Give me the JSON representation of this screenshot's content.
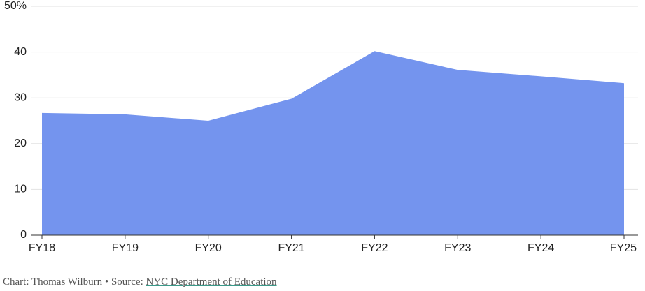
{
  "chart_data": {
    "type": "area",
    "categories": [
      "FY18",
      "FY19",
      "FY20",
      "FY21",
      "FY22",
      "FY23",
      "FY24",
      "FY25"
    ],
    "values": [
      26.7,
      26.4,
      25.0,
      29.8,
      40.2,
      36.1,
      34.7,
      33.2
    ],
    "color": "#7494ee",
    "ylim": [
      0,
      50
    ],
    "yticks": [
      0,
      10,
      20,
      30,
      40,
      {
        "value": 50,
        "label": "50%"
      }
    ],
    "grid": true,
    "credit": "Chart: Thomas Wilburn",
    "separator": "•",
    "source_label": "Source:",
    "source": "NYC Department of Education"
  }
}
